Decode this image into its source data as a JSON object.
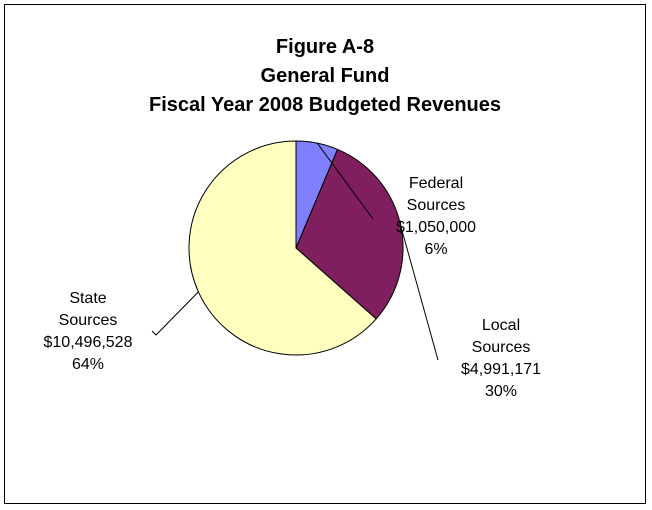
{
  "chart_data": {
    "type": "pie",
    "title_lines": [
      "Figure A-8",
      "General Fund",
      "Fiscal Year 2008 Budgeted Revenues"
    ],
    "slices": [
      {
        "label_lines": [
          "Federal",
          "Sources"
        ],
        "value": 1050000,
        "value_text": "$1,050,000",
        "percent_text": "6%",
        "color": "#8080ff"
      },
      {
        "label_lines": [
          "Local",
          "Sources"
        ],
        "value": 4991171,
        "value_text": "$4,991,171",
        "percent_text": "30%",
        "color": "#7f1f5f"
      },
      {
        "label_lines": [
          "State",
          "Sources"
        ],
        "value": 10496528,
        "value_text": "$10,496,528",
        "percent_text": "64%",
        "color": "#ffffc0"
      }
    ],
    "start_angle": "12 o'clock",
    "direction": "clockwise",
    "legend": "none",
    "data_labels": "outside with leader lines"
  }
}
